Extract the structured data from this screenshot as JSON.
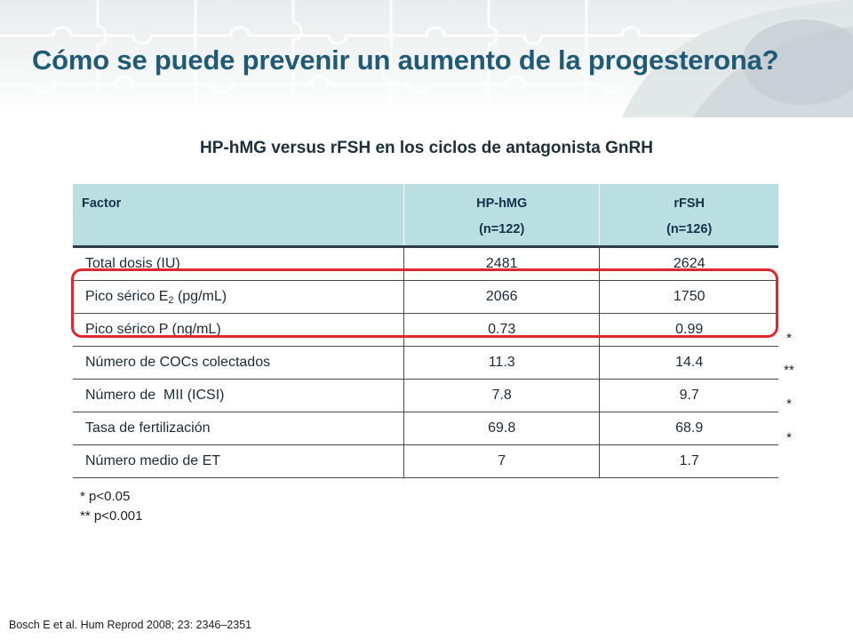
{
  "title": "Cómo se puede prevenir un aumento de la progesterona?",
  "subtitle": "HP-hMG versus rFSH en los ciclos de antagonista GnRH",
  "table": {
    "headers": {
      "factor": "Factor",
      "col1_line1": "HP-hMG",
      "col1_line2": "(n=122)",
      "col2_line1": "rFSH",
      "col2_line2": "(n=126)"
    },
    "rows": [
      {
        "label": "Total dosis (IU)",
        "hp_hmg": "2481",
        "rfsh": "2624"
      },
      {
        "label_pre": "Pico sérico E",
        "label_sub": "2",
        "label_post": " (pg/mL)",
        "hp_hmg": "2066",
        "rfsh": "1750"
      },
      {
        "label": "Pico sérico P (ng/mL)",
        "hp_hmg": "0.73",
        "rfsh": "0.99"
      },
      {
        "label": "Número de COCs colectados",
        "hp_hmg": "11.3",
        "rfsh": "14.4"
      },
      {
        "label": "Número de  MII (ICSI)",
        "hp_hmg": "7.8",
        "rfsh": "9.7"
      },
      {
        "label": "Tasa de fertilización",
        "hp_hmg": "69.8",
        "rfsh": "68.9"
      },
      {
        "label": "Número medio de ET",
        "hp_hmg": "7",
        "rfsh": "1.7"
      }
    ]
  },
  "significance_marks": [
    "*",
    "**",
    "*",
    "*"
  ],
  "footnotes": {
    "line1": "* p<0.05",
    "line2": "** p<0.001"
  },
  "citation": "Bosch E et al. Hum Reprod 2008; 23: 2346–2351",
  "colors": {
    "title": "#1f5a76",
    "header_bg": "#b9dfe2",
    "highlight": "#e3262d"
  }
}
